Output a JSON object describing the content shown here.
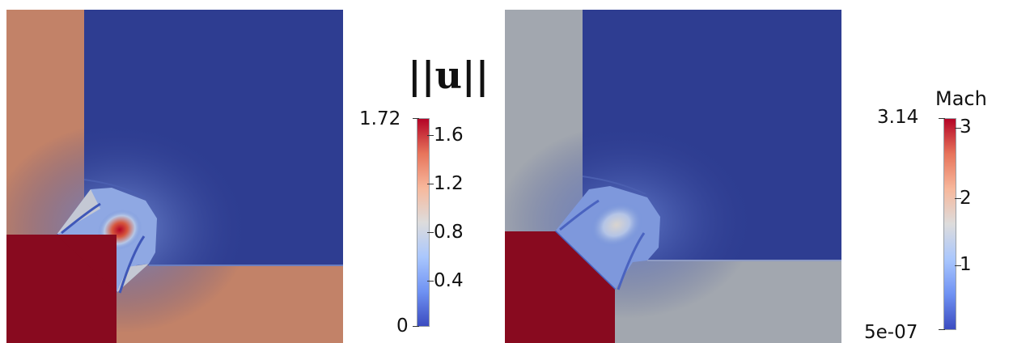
{
  "plots": [
    {
      "id": "speed",
      "colors": {
        "background_left": "#c28268",
        "background_right": "#2e3d91",
        "bottom_left": "#880a1f",
        "bottom_right": "#c28268",
        "shock": "#4c69c6",
        "hotspot": "#cc3a24"
      }
    },
    {
      "id": "mach",
      "colors": {
        "background_left": "#a2a7af",
        "background_right": "#2e3d91",
        "bottom_left": "#880a1f",
        "bottom_right": "#a2a7af",
        "shock": "#4c69c6",
        "hotspot": "#c9c5c1"
      }
    }
  ],
  "colorbars": [
    {
      "id": "speed-colorbar",
      "title": "||u||",
      "max_label": "1.72",
      "min_label": "0",
      "tick_labels": [
        "1.6",
        "1.2",
        "0.8",
        "0.4"
      ]
    },
    {
      "id": "mach-colorbar",
      "title": "Mach",
      "max_label": "3.14",
      "min_label": "5e-07",
      "tick_labels": [
        "3",
        "2",
        "1"
      ]
    }
  ],
  "colormap": [
    "#3b4cc0",
    "#6f92f3",
    "#aac7fd",
    "#dddcdc",
    "#f7b89c",
    "#e7745b",
    "#b40426"
  ]
}
